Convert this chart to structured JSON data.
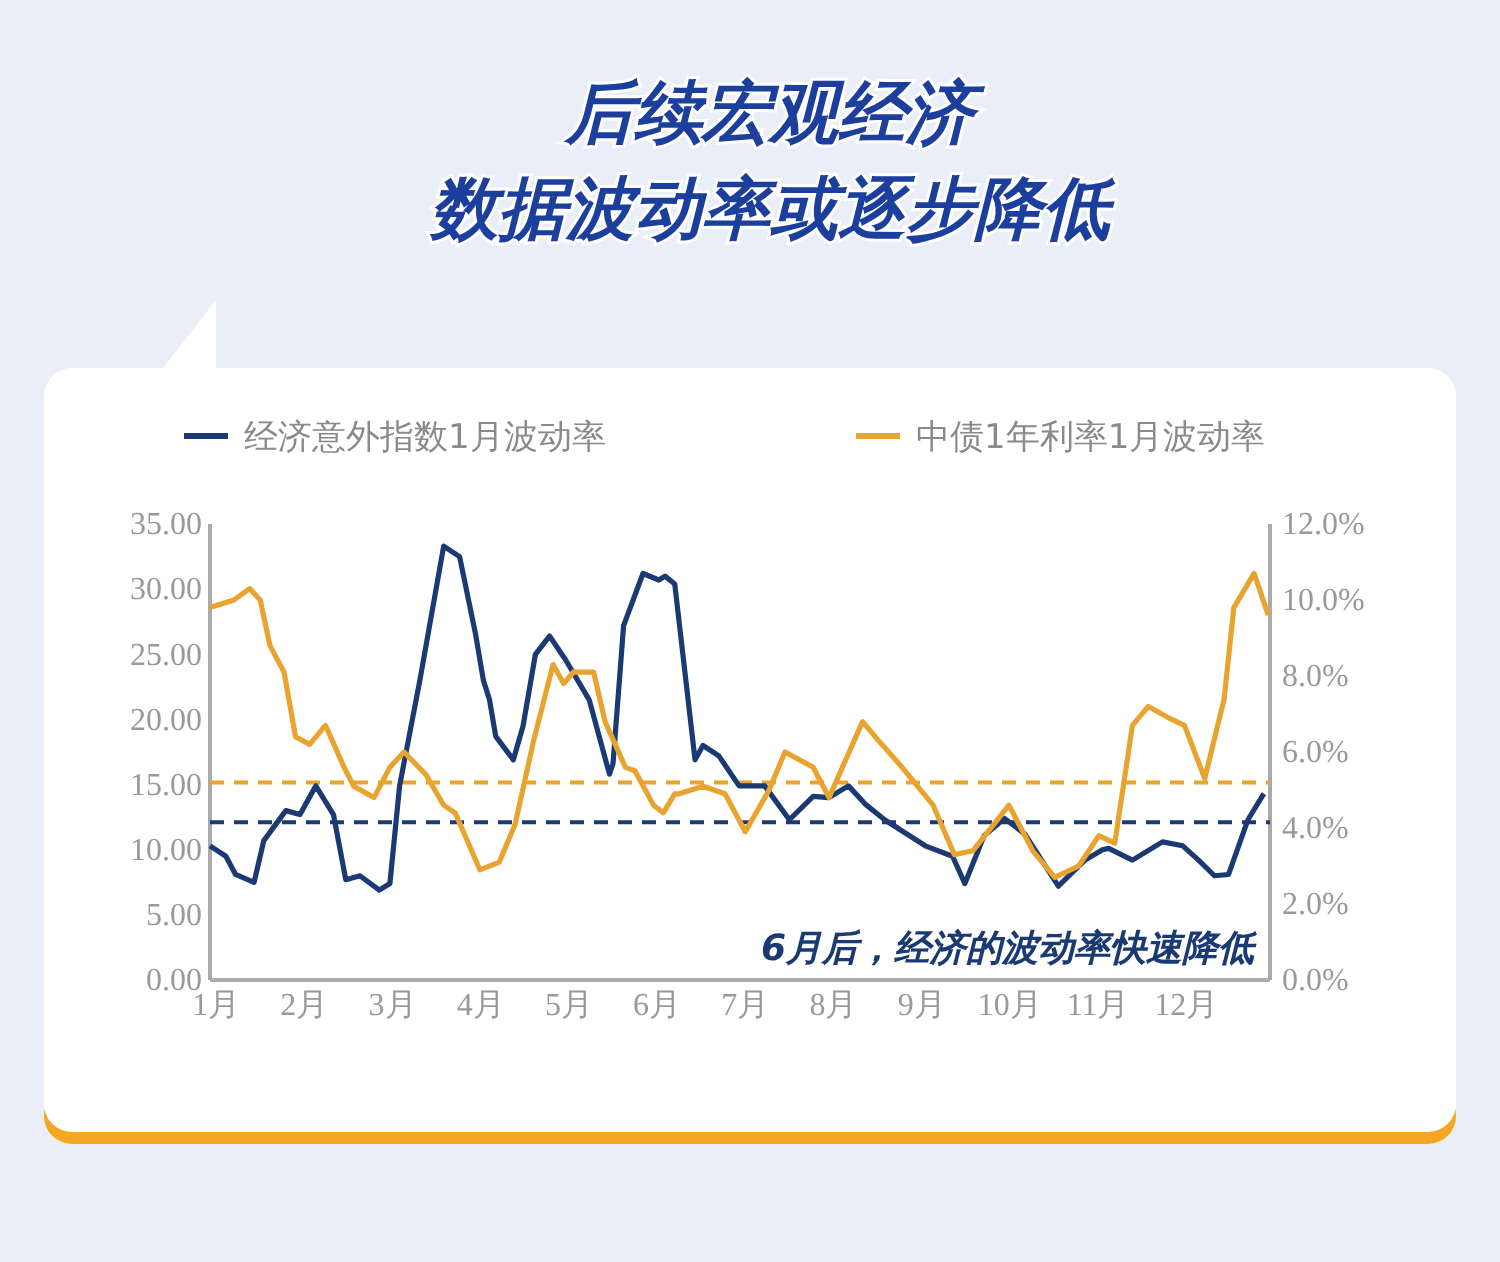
{
  "chart_data": {
    "type": "line",
    "title": "后续宏观经济数据波动率或逐步降低",
    "xlim": [
      0.93,
      12.95
    ],
    "xticks": [
      {
        "value": 1,
        "label": "1月"
      },
      {
        "value": 2,
        "label": "2月"
      },
      {
        "value": 3,
        "label": "3月"
      },
      {
        "value": 4,
        "label": "4月"
      },
      {
        "value": 5,
        "label": "5月"
      },
      {
        "value": 6,
        "label": "6月"
      },
      {
        "value": 7,
        "label": "7月"
      },
      {
        "value": 8,
        "label": "8月"
      },
      {
        "value": 9,
        "label": "9月"
      },
      {
        "value": 10,
        "label": "10月"
      },
      {
        "value": 11,
        "label": "11月"
      },
      {
        "value": 12,
        "label": "12月"
      }
    ],
    "ylim": [
      0,
      35
    ],
    "yticks": [
      {
        "value": 0,
        "label": "0.00"
      },
      {
        "value": 5,
        "label": "5.00"
      },
      {
        "value": 10,
        "label": "10.00"
      },
      {
        "value": 15,
        "label": "15.00"
      },
      {
        "value": 20,
        "label": "20.00"
      },
      {
        "value": 25,
        "label": "25.00"
      },
      {
        "value": 30,
        "label": "30.00"
      },
      {
        "value": 35,
        "label": "35.00"
      }
    ],
    "y2lim": [
      0,
      12
    ],
    "y2ticks": [
      {
        "value": 0,
        "label": "0.0%"
      },
      {
        "value": 2,
        "label": "2.0%"
      },
      {
        "value": 4,
        "label": "4.0%"
      },
      {
        "value": 6,
        "label": "6.0%"
      },
      {
        "value": 8,
        "label": "8.0%"
      },
      {
        "value": 10,
        "label": "10.0%"
      },
      {
        "value": 12,
        "label": "12.0%"
      }
    ],
    "series": [
      {
        "name": "经济意外指数1月波动率",
        "color": "#1b3a73",
        "x": [
          0.93,
          1.11,
          1.22,
          1.43,
          1.54,
          1.79,
          1.95,
          2.13,
          2.33,
          2.47,
          2.63,
          2.85,
          2.97,
          3.08,
          3.31,
          3.58,
          3.76,
          3.94,
          4.03,
          4.1,
          4.17,
          4.37,
          4.48,
          4.62,
          4.78,
          4.96,
          5.23,
          5.46,
          5.5,
          5.62,
          5.84,
          6.02,
          6.09,
          6.2,
          6.43,
          6.52,
          6.7,
          6.93,
          7.22,
          7.5,
          7.77,
          7.95,
          8.17,
          8.36,
          8.58,
          9.04,
          9.35,
          9.49,
          9.71,
          9.94,
          10.17,
          10.39,
          10.55,
          10.85,
          11.05,
          11.12,
          11.39,
          11.73,
          11.96,
          12.14,
          12.32,
          12.48,
          12.7,
          12.88
        ],
        "values": [
          10.3,
          9.5,
          8.1,
          7.5,
          10.7,
          13.0,
          12.7,
          14.9,
          12.7,
          7.7,
          8.0,
          6.9,
          7.4,
          14.9,
          23.0,
          33.3,
          32.5,
          26.6,
          23.0,
          21.5,
          18.7,
          16.9,
          19.5,
          25.0,
          26.4,
          24.6,
          21.5,
          15.8,
          16.6,
          27.2,
          31.2,
          30.7,
          31.0,
          30.4,
          16.9,
          18.0,
          17.2,
          14.9,
          14.9,
          12.3,
          14.1,
          14.0,
          14.9,
          13.5,
          12.3,
          10.3,
          9.5,
          7.4,
          11.1,
          12.4,
          11.2,
          8.9,
          7.2,
          9.2,
          10.0,
          10.1,
          9.2,
          10.6,
          10.3,
          9.2,
          8.0,
          8.1,
          12.3,
          14.3
        ]
      },
      {
        "name": "中债1年利率1月波动率",
        "color": "#e8a42e",
        "axis": "y2",
        "x": [
          0.93,
          1.2,
          1.38,
          1.5,
          1.61,
          1.77,
          1.9,
          2.06,
          2.24,
          2.45,
          2.56,
          2.79,
          2.97,
          3.13,
          3.38,
          3.58,
          3.71,
          3.99,
          4.21,
          4.39,
          4.6,
          4.82,
          4.94,
          5.05,
          5.28,
          5.41,
          5.64,
          5.75,
          5.96,
          6.07,
          6.2,
          6.25,
          6.52,
          6.77,
          7.0,
          7.27,
          7.45,
          7.77,
          7.95,
          8.33,
          8.51,
          8.74,
          9.13,
          9.37,
          9.58,
          9.99,
          10.26,
          10.51,
          10.78,
          11.01,
          11.19,
          11.39,
          11.57,
          11.8,
          11.98,
          12.21,
          12.43,
          12.54,
          12.77,
          12.93
        ],
        "values": [
          9.8,
          10.0,
          10.3,
          10.0,
          8.8,
          8.1,
          6.4,
          6.2,
          6.7,
          5.6,
          5.1,
          4.8,
          5.6,
          6.0,
          5.4,
          4.6,
          4.4,
          2.9,
          3.1,
          4.1,
          6.3,
          8.3,
          7.8,
          8.1,
          8.1,
          6.8,
          5.6,
          5.5,
          4.6,
          4.4,
          4.9,
          4.9,
          5.1,
          4.9,
          3.9,
          5.0,
          6.0,
          5.6,
          4.8,
          6.8,
          6.3,
          5.7,
          4.6,
          3.3,
          3.4,
          4.6,
          3.4,
          2.7,
          3.0,
          3.8,
          3.6,
          6.7,
          7.2,
          6.9,
          6.7,
          5.3,
          7.4,
          9.8,
          10.7,
          9.6
        ]
      }
    ],
    "ref_lines": [
      {
        "axis": "y",
        "value": 12.1,
        "color": "#1b3a73",
        "line_style": "dashed"
      },
      {
        "axis": "y2",
        "value": 5.2,
        "color": "#e8a42e",
        "line_style": "dashed"
      }
    ],
    "annotations": [
      "6月后，经济的波动率快速降低"
    ],
    "legend": "top",
    "grid": false,
    "marker": "none",
    "line_style": "solid"
  }
}
